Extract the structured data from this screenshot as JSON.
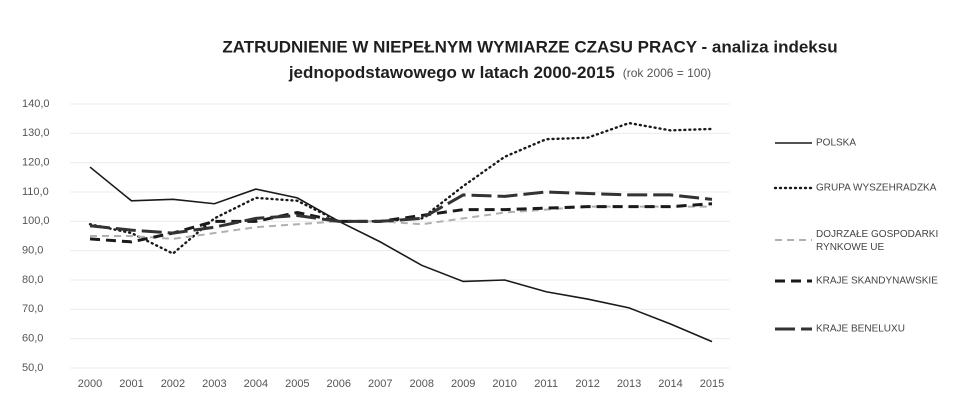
{
  "chart_data": {
    "type": "line",
    "title": [
      "ZATRUDNIENIE W NIEPEŁNYM WYMIARZE CZASU PRACY - analiza indeksu",
      "jednopodstawowego w latach 2000-2015"
    ],
    "subtitle": "(rok 2006 = 100)",
    "categories": [
      "2000",
      "2001",
      "2002",
      "2003",
      "2004",
      "2005",
      "2006",
      "2007",
      "2008",
      "2009",
      "2010",
      "2011",
      "2012",
      "2013",
      "2014",
      "2015"
    ],
    "ylim": [
      50,
      140
    ],
    "yticks": [
      {
        "value": 50,
        "label": "50,0"
      },
      {
        "value": 60,
        "label": "60,0"
      },
      {
        "value": 70,
        "label": "70,0"
      },
      {
        "value": 80,
        "label": "80,0"
      },
      {
        "value": 90,
        "label": "90,0"
      },
      {
        "value": 100,
        "label": "100,0"
      },
      {
        "value": 110,
        "label": "110,0"
      },
      {
        "value": 120,
        "label": "120,0"
      },
      {
        "value": 130,
        "label": "130,0"
      },
      {
        "value": 140,
        "label": "140,0"
      }
    ],
    "grid": true,
    "legend": "right",
    "series": [
      {
        "name": "POLSKA",
        "color": "#1a1a1a",
        "style": "solid",
        "values": [
          118.5,
          107,
          107.5,
          106,
          111,
          108,
          100,
          93,
          85,
          79.5,
          80,
          76,
          73.5,
          70.5,
          65,
          59
        ]
      },
      {
        "name": "GRUPA WYSZEHRADZKA",
        "color": "#1a1a1a",
        "style": "dotted",
        "values": [
          99,
          96,
          89,
          101,
          108,
          107,
          100,
          100,
          101,
          112,
          122,
          128,
          128.5,
          133.5,
          131,
          131.5
        ]
      },
      {
        "name": "DOJRZAŁE GOSPODARKI RYNKOWE UE",
        "color": "#b0b0b0",
        "style": "dashed",
        "values": [
          95,
          95,
          94,
          96,
          98,
          99,
          100,
          100,
          99,
          101,
          103,
          104,
          105,
          105,
          105,
          105
        ]
      },
      {
        "name": "KRAJE SKANDYNAWSKIE",
        "color": "#1a1a1a",
        "style": "heavy-dashed",
        "values": [
          94,
          93,
          96,
          100,
          100,
          103,
          100,
          100,
          102,
          104,
          104,
          104.5,
          105,
          105,
          105,
          106
        ]
      },
      {
        "name": "KRAJE BENELUXU",
        "color": "#333333",
        "style": "long-dashed",
        "values": [
          98.5,
          97,
          96,
          98,
          101,
          102,
          100,
          100,
          101,
          109,
          108.5,
          110,
          109.5,
          109,
          109,
          107.5
        ]
      }
    ]
  }
}
